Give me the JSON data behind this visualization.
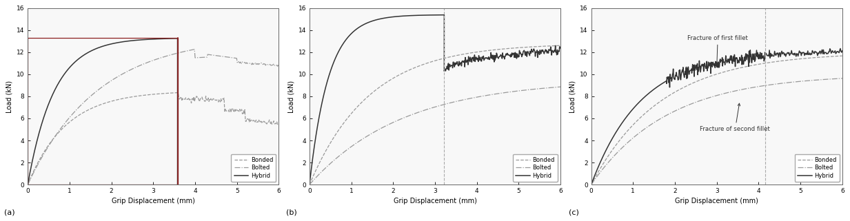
{
  "xlim": [
    0,
    6
  ],
  "ylim": [
    0,
    16
  ],
  "xticks": [
    0,
    1,
    2,
    3,
    4,
    5,
    6
  ],
  "yticks": [
    0,
    2,
    4,
    6,
    8,
    10,
    12,
    14,
    16
  ],
  "xlabel": "Grip Displacement (mm)",
  "ylabel": "Load (kN)",
  "subplot_labels": [
    "(a)",
    "(b)",
    "(c)"
  ],
  "legend_entries": [
    "Bonded",
    "Bolted",
    "Hybrid"
  ],
  "bonded_color": "#999999",
  "bolted_color": "#999999",
  "hybrid_color": "#333333",
  "vline_color_a": "#8B2020",
  "vline_color_bc": "#aaaaaa",
  "annotation_color": "#333333",
  "fracture1_text": "Fracture of first fillet",
  "fracture2_text": "Fracture of second fillet",
  "figsize": [
    12.33,
    3.21
  ],
  "dpi": 100
}
